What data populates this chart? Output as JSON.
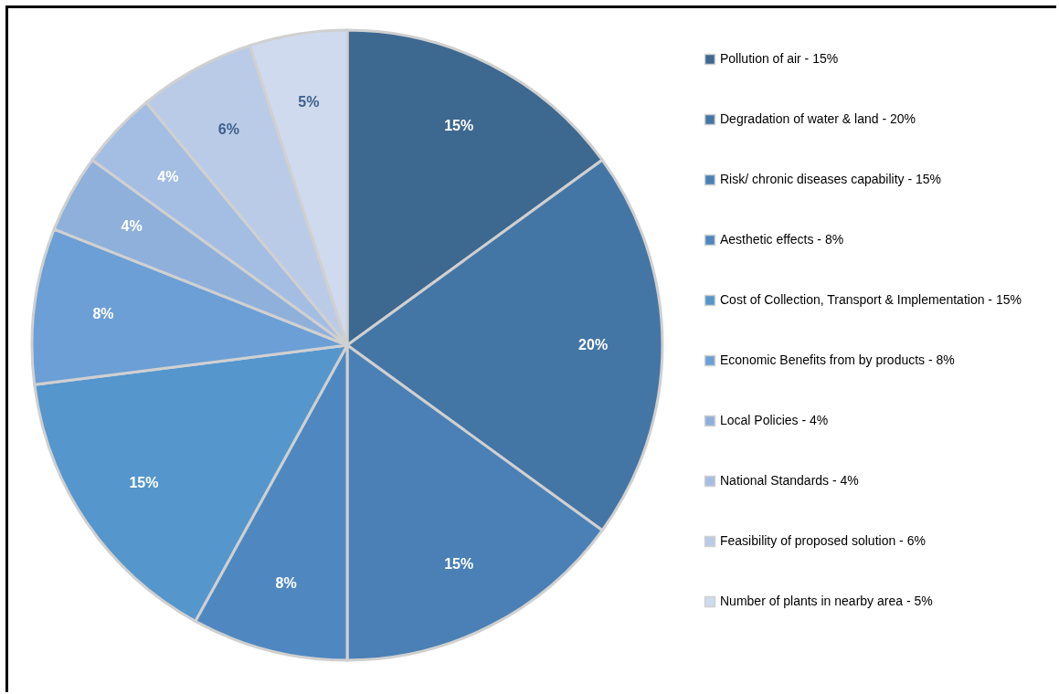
{
  "chart_data": {
    "type": "pie",
    "categories": [
      "Pollution of air - 15%",
      "Degradation of water & land - 20%",
      "Risk/ chronic diseases capability - 15%",
      "Aesthetic effects - 8%",
      "Cost of Collection, Transport & Implementation - 15%",
      "Economic Benefits from by products - 8%",
      "Local Policies - 4%",
      "National Standards - 4%",
      "Feasibility of proposed solution - 6%",
      "Number of plants in nearby area - 5%"
    ],
    "values": [
      15,
      20,
      15,
      8,
      15,
      8,
      4,
      4,
      6,
      5
    ],
    "colors": [
      "#3d6890",
      "#4476a5",
      "#4a80b5",
      "#4f88c0",
      "#5596cc",
      "#6b9fd6",
      "#8eb0db",
      "#a4bde3",
      "#b9cbe7",
      "#cfdaee"
    ],
    "value_labels": [
      "15%",
      "20%",
      "15%",
      "8%",
      "15%",
      "8%",
      "4%",
      "4%",
      "6%",
      "5%"
    ],
    "legend": "right"
  }
}
